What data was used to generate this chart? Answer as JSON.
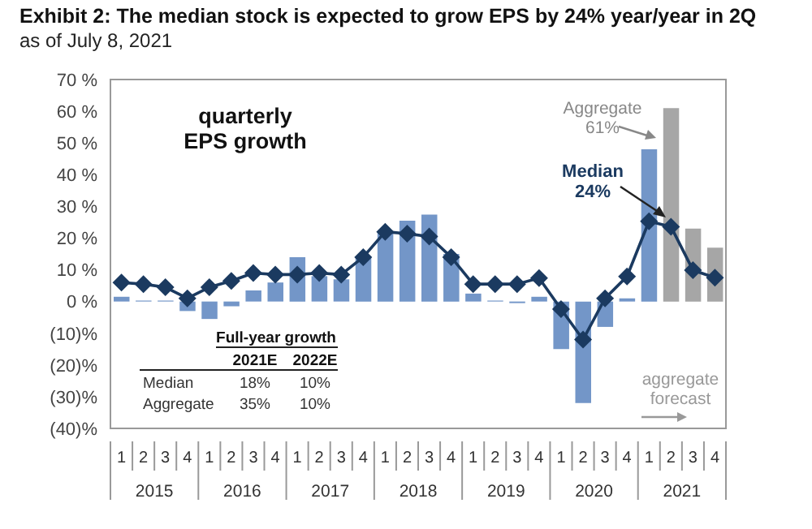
{
  "chart_data": {
    "type": "bar",
    "title": "Exhibit 2: The median stock is expected to grow EPS by 24% year/year in 2Q",
    "subtitle": "as of July 8, 2021",
    "categories": [
      "1",
      "2",
      "3",
      "4",
      "1",
      "2",
      "3",
      "4",
      "1",
      "2",
      "3",
      "4",
      "1",
      "2",
      "3",
      "4",
      "1",
      "2",
      "3",
      "4",
      "1",
      "2",
      "3",
      "4",
      "1",
      "2",
      "3",
      "4"
    ],
    "series": [
      {
        "colors": [
          "#7396c8",
          "#7396c8",
          "#7396c8",
          "#7396c8",
          "#7396c8",
          "#7396c8",
          "#7396c8",
          "#7396c8",
          "#7396c8",
          "#7396c8",
          "#7396c8",
          "#7396c8",
          "#7396c8",
          "#7396c8",
          "#7396c8",
          "#7396c8",
          "#7396c8",
          "#7396c8",
          "#7396c8",
          "#7396c8",
          "#7396c8",
          "#7396c8",
          "#7396c8",
          "#7396c8",
          "#7396c8",
          "#a6a6a6",
          "#a6a6a6",
          "#a6a6a6"
        ],
        "values": [
          1.5,
          0.3,
          0.3,
          -3,
          -5.5,
          -1.5,
          3.5,
          6,
          14,
          8,
          7,
          14,
          22,
          25.5,
          27.4,
          15,
          2.5,
          0.3,
          -0.5,
          1.5,
          -15,
          -32,
          -8,
          1,
          48,
          61,
          23,
          17
        ]
      },
      {
        "type": "line",
        "color": "#1b3a60",
        "marker": "diamond",
        "values": [
          6,
          5.5,
          4.5,
          1,
          4.5,
          6.5,
          9,
          8.5,
          8.5,
          9,
          8.5,
          14,
          22,
          21.4,
          20.5,
          14,
          5.5,
          5.5,
          5.5,
          7.4,
          -2.4,
          -12,
          1,
          7.9,
          25.3,
          23.6,
          9.9,
          7.5
        ]
      }
    ],
    "ylim": [
      -40,
      70
    ],
    "yticks": [
      {
        "value": -40,
        "label": "(40)%"
      },
      {
        "value": -30,
        "label": "(30)%"
      },
      {
        "value": -20,
        "label": "(20)%"
      },
      {
        "value": -10,
        "label": "(10)%"
      },
      {
        "value": 0,
        "label": "0 %"
      },
      {
        "value": 10,
        "label": "10 %"
      },
      {
        "value": 20,
        "label": "20 %"
      },
      {
        "value": 30,
        "label": "30 %"
      },
      {
        "value": 40,
        "label": "40 %"
      },
      {
        "value": 50,
        "label": "50 %"
      },
      {
        "value": 60,
        "label": "60 %"
      },
      {
        "value": 70,
        "label": "70 %"
      }
    ],
    "grid": false,
    "legend": false,
    "annotations": [
      "Aggregate\n61%",
      "Median\n24%",
      "aggregate\nforecast",
      "quarterly\nEPS growth",
      "Full-year growth",
      "2021E",
      "2022E",
      "Median",
      "18%",
      "10%",
      "Aggregate",
      "35%",
      "10%",
      "2015",
      "2016",
      "2017",
      "2018",
      "2019",
      "2020",
      "2021"
    ]
  }
}
